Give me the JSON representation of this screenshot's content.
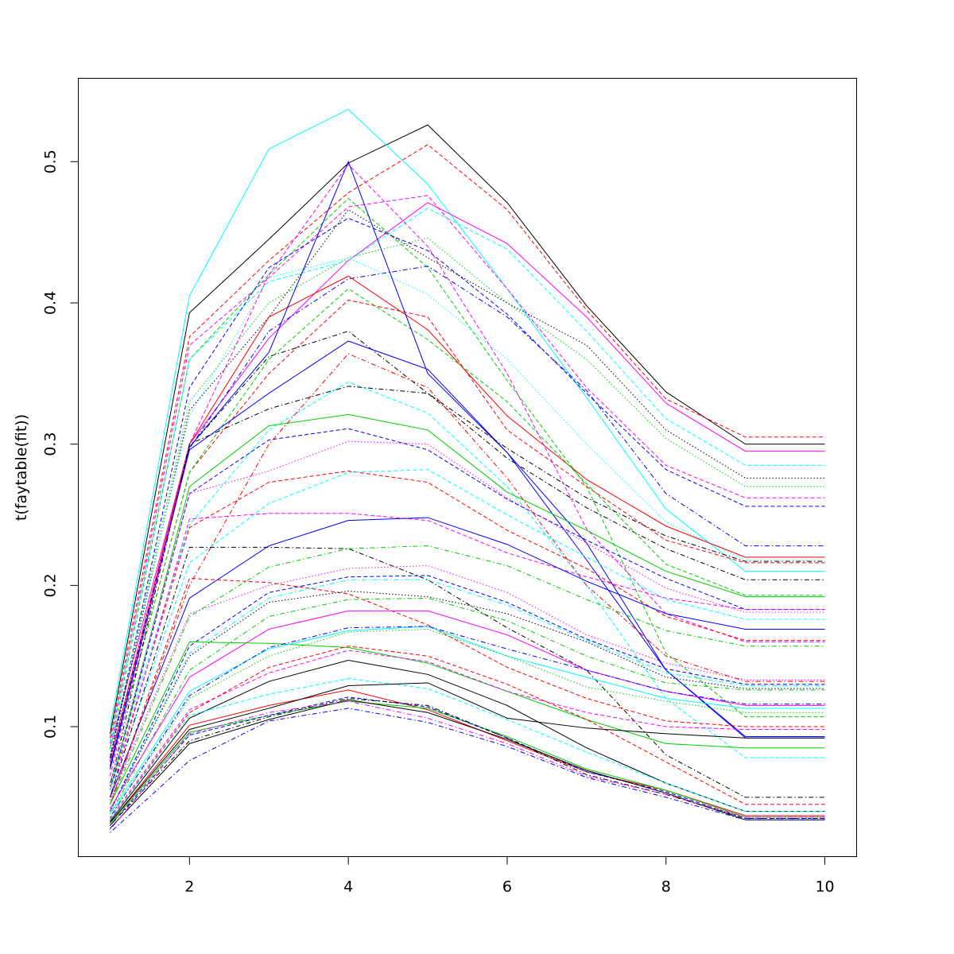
{
  "chart_data": {
    "type": "line",
    "title": "",
    "xlabel": "",
    "ylabel": "t(faytable(fit))",
    "xlim": [
      0.6,
      10.4
    ],
    "ylim": [
      0.008,
      0.559
    ],
    "xticks": [
      2,
      4,
      6,
      8,
      10
    ],
    "yticks": [
      0.1,
      0.2,
      0.3,
      0.4,
      0.5
    ],
    "grid": false,
    "legend": "none",
    "x": [
      1,
      2,
      3,
      4,
      5,
      6,
      7,
      8,
      9,
      10
    ],
    "series": [
      {
        "color": "#000000",
        "dash": "solid",
        "values": [
          0.095,
          0.393,
          0.445,
          0.499,
          0.526,
          0.471,
          0.398,
          0.337,
          0.3,
          0.3
        ]
      },
      {
        "color": "#FF0000",
        "dash": "dashed",
        "values": [
          0.092,
          0.376,
          0.43,
          0.478,
          0.512,
          0.466,
          0.395,
          0.332,
          0.305,
          0.305
        ]
      },
      {
        "color": "#00FFFF",
        "dash": "solid",
        "values": [
          0.1,
          0.405,
          0.509,
          0.537,
          0.484,
          0.41,
          0.333,
          0.254,
          0.21,
          0.21
        ]
      },
      {
        "color": "#FF00FF",
        "dash": "solid",
        "values": [
          0.085,
          0.3,
          0.375,
          0.43,
          0.471,
          0.442,
          0.39,
          0.329,
          0.295,
          0.295
        ]
      },
      {
        "color": "#FF00FF",
        "dash": "dashed",
        "values": [
          0.088,
          0.37,
          0.418,
          0.468,
          0.476,
          0.41,
          0.34,
          0.285,
          0.262,
          0.262
        ]
      },
      {
        "color": "#00CD00",
        "dash": "dashed",
        "values": [
          0.084,
          0.36,
          0.42,
          0.474,
          0.425,
          0.345,
          0.27,
          0.152,
          0.107,
          0.107
        ]
      },
      {
        "color": "#00CD00",
        "dash": "dotted",
        "values": [
          0.08,
          0.33,
          0.4,
          0.432,
          0.446,
          0.4,
          0.36,
          0.304,
          0.27,
          0.27
        ]
      },
      {
        "color": "#0000FF",
        "dash": "dashed",
        "values": [
          0.078,
          0.34,
          0.425,
          0.46,
          0.437,
          0.392,
          0.336,
          0.282,
          0.256,
          0.256
        ]
      },
      {
        "color": "#0000FF",
        "dash": "dotdash",
        "values": [
          0.075,
          0.297,
          0.38,
          0.417,
          0.426,
          0.39,
          0.338,
          0.265,
          0.228,
          0.228
        ]
      },
      {
        "color": "#000000",
        "dash": "dotted",
        "values": [
          0.078,
          0.324,
          0.39,
          0.466,
          0.432,
          0.4,
          0.37,
          0.31,
          0.276,
          0.276
        ]
      },
      {
        "color": "#000000",
        "dash": "dotdash",
        "values": [
          0.07,
          0.298,
          0.362,
          0.38,
          0.336,
          0.29,
          0.255,
          0.226,
          0.204,
          0.204
        ]
      },
      {
        "color": "#00FFFF",
        "dash": "dashed",
        "values": [
          0.09,
          0.36,
          0.415,
          0.43,
          0.467,
          0.438,
          0.38,
          0.318,
          0.285,
          0.285
        ]
      },
      {
        "color": "#00FFFF",
        "dash": "dotted",
        "values": [
          0.085,
          0.32,
          0.418,
          0.432,
          0.406,
          0.36,
          0.3,
          0.245,
          0.218,
          0.218
        ]
      },
      {
        "color": "#FF0000",
        "dash": "solid",
        "values": [
          0.076,
          0.3,
          0.39,
          0.419,
          0.381,
          0.32,
          0.275,
          0.242,
          0.22,
          0.22
        ]
      },
      {
        "color": "#FF0000",
        "dash": "dashed",
        "values": [
          0.07,
          0.28,
          0.35,
          0.402,
          0.39,
          0.31,
          0.27,
          0.232,
          0.216,
          0.216
        ]
      },
      {
        "color": "#00CD00",
        "dash": "dashed",
        "values": [
          0.07,
          0.28,
          0.36,
          0.41,
          0.374,
          0.33,
          0.272,
          0.215,
          0.193,
          0.193
        ]
      },
      {
        "color": "#0000FF",
        "dash": "solid",
        "values": [
          0.072,
          0.296,
          0.336,
          0.373,
          0.353,
          0.294,
          0.218,
          0.14,
          0.093,
          0.093
        ]
      },
      {
        "color": "#0000FF",
        "dash": "solid",
        "values": [
          0.07,
          0.298,
          0.365,
          0.5,
          0.35,
          0.294,
          0.23,
          0.14,
          0.092,
          0.092
        ]
      },
      {
        "color": "#FF00FF",
        "dash": "dashed",
        "values": [
          0.065,
          0.3,
          0.42,
          0.498,
          0.44,
          0.35,
          0.24,
          0.18,
          0.16,
          0.16
        ]
      },
      {
        "color": "#00CD00",
        "dash": "solid",
        "values": [
          0.055,
          0.27,
          0.313,
          0.321,
          0.31,
          0.266,
          0.239,
          0.21,
          0.192,
          0.192
        ]
      },
      {
        "color": "#00FFFF",
        "dash": "dashed",
        "values": [
          0.06,
          0.243,
          0.31,
          0.344,
          0.322,
          0.27,
          0.2,
          0.12,
          0.078,
          0.078
        ]
      },
      {
        "color": "#000000",
        "dash": "dotdash",
        "values": [
          0.058,
          0.3,
          0.325,
          0.341,
          0.336,
          0.297,
          0.262,
          0.235,
          0.217,
          0.217
        ]
      },
      {
        "color": "#0000FF",
        "dash": "dashed",
        "values": [
          0.055,
          0.265,
          0.303,
          0.311,
          0.296,
          0.261,
          0.232,
          0.205,
          0.183,
          0.183
        ]
      },
      {
        "color": "#FF00FF",
        "dash": "dotted",
        "values": [
          0.06,
          0.265,
          0.281,
          0.302,
          0.3,
          0.262,
          0.23,
          0.198,
          0.181,
          0.181
        ]
      },
      {
        "color": "#FF0000",
        "dash": "dashed",
        "values": [
          0.055,
          0.241,
          0.273,
          0.281,
          0.273,
          0.239,
          0.212,
          0.178,
          0.161,
          0.161
        ]
      },
      {
        "color": "#00FFFF",
        "dash": "dashed",
        "values": [
          0.055,
          0.216,
          0.258,
          0.28,
          0.282,
          0.25,
          0.22,
          0.19,
          0.176,
          0.176
        ]
      },
      {
        "color": "#FF0000",
        "dash": "dotdash",
        "values": [
          0.045,
          0.2,
          0.3,
          0.364,
          0.34,
          0.276,
          0.2,
          0.15,
          0.132,
          0.132
        ]
      },
      {
        "color": "#FF00FF",
        "dash": "dashed",
        "values": [
          0.05,
          0.247,
          0.251,
          0.251,
          0.246,
          0.223,
          0.206,
          0.191,
          0.183,
          0.183
        ]
      },
      {
        "color": "#0000FF",
        "dash": "solid",
        "values": [
          0.05,
          0.191,
          0.228,
          0.246,
          0.248,
          0.229,
          0.203,
          0.18,
          0.169,
          0.169
        ]
      },
      {
        "color": "#000000",
        "dash": "dotdash",
        "values": [
          0.05,
          0.227,
          0.227,
          0.226,
          0.204,
          0.17,
          0.14,
          0.08,
          0.05,
          0.05
        ]
      },
      {
        "color": "#00CD00",
        "dash": "dotdash",
        "values": [
          0.045,
          0.178,
          0.213,
          0.226,
          0.228,
          0.214,
          0.19,
          0.168,
          0.157,
          0.157
        ]
      },
      {
        "color": "#FF0000",
        "dash": "dashed",
        "values": [
          0.045,
          0.205,
          0.202,
          0.194,
          0.172,
          0.142,
          0.12,
          0.104,
          0.1,
          0.1
        ]
      },
      {
        "color": "#FF00FF",
        "dash": "dotted",
        "values": [
          0.048,
          0.18,
          0.2,
          0.212,
          0.214,
          0.195,
          0.165,
          0.145,
          0.133,
          0.133
        ]
      },
      {
        "color": "#0000FF",
        "dash": "dashed",
        "values": [
          0.04,
          0.157,
          0.195,
          0.206,
          0.207,
          0.188,
          0.162,
          0.141,
          0.13,
          0.13
        ]
      },
      {
        "color": "#00FFFF",
        "dash": "dotdash",
        "values": [
          0.04,
          0.152,
          0.191,
          0.204,
          0.204,
          0.186,
          0.161,
          0.138,
          0.129,
          0.129
        ]
      },
      {
        "color": "#000000",
        "dash": "dotted",
        "values": [
          0.04,
          0.15,
          0.188,
          0.196,
          0.192,
          0.18,
          0.16,
          0.135,
          0.127,
          0.127
        ]
      },
      {
        "color": "#00CD00",
        "dash": "dotdash",
        "values": [
          0.038,
          0.14,
          0.178,
          0.19,
          0.191,
          0.175,
          0.15,
          0.131,
          0.126,
          0.126
        ]
      },
      {
        "color": "#FF00FF",
        "dash": "solid",
        "values": [
          0.042,
          0.135,
          0.169,
          0.182,
          0.182,
          0.165,
          0.14,
          0.125,
          0.115,
          0.115
        ]
      },
      {
        "color": "#00CD00",
        "dash": "solid",
        "values": [
          0.045,
          0.16,
          0.159,
          0.156,
          0.145,
          0.125,
          0.105,
          0.088,
          0.085,
          0.085
        ]
      },
      {
        "color": "#00FFFF",
        "dash": "solid",
        "values": [
          0.038,
          0.125,
          0.155,
          0.168,
          0.171,
          0.15,
          0.135,
          0.12,
          0.113,
          0.113
        ]
      },
      {
        "color": "#0000FF",
        "dash": "dotdash",
        "values": [
          0.036,
          0.122,
          0.156,
          0.17,
          0.171,
          0.155,
          0.14,
          0.125,
          0.116,
          0.116
        ]
      },
      {
        "color": "#00CD00",
        "dash": "dotted",
        "values": [
          0.036,
          0.12,
          0.15,
          0.167,
          0.169,
          0.15,
          0.128,
          0.118,
          0.11,
          0.11
        ]
      },
      {
        "color": "#FF00FF",
        "dash": "dashed",
        "values": [
          0.035,
          0.112,
          0.138,
          0.154,
          0.146,
          0.125,
          0.11,
          0.1,
          0.098,
          0.098
        ]
      },
      {
        "color": "#FF0000",
        "dash": "dashed",
        "values": [
          0.034,
          0.11,
          0.142,
          0.157,
          0.15,
          0.13,
          0.105,
          0.075,
          0.045,
          0.045
        ]
      },
      {
        "color": "#000000",
        "dash": "solid",
        "values": [
          0.033,
          0.106,
          0.132,
          0.147,
          0.137,
          0.115,
          0.085,
          0.06,
          0.04,
          0.04
        ]
      },
      {
        "color": "#00FFFF",
        "dash": "dashed",
        "values": [
          0.034,
          0.108,
          0.123,
          0.134,
          0.127,
          0.105,
          0.082,
          0.06,
          0.04,
          0.04
        ]
      },
      {
        "color": "#FF0000",
        "dash": "solid",
        "values": [
          0.032,
          0.101,
          0.115,
          0.126,
          0.112,
          0.09,
          0.068,
          0.055,
          0.037,
          0.037
        ]
      },
      {
        "color": "#000000",
        "dash": "solid",
        "values": [
          0.032,
          0.098,
          0.113,
          0.129,
          0.131,
          0.106,
          0.099,
          0.095,
          0.092,
          0.092
        ]
      },
      {
        "color": "#00CD00",
        "dash": "solid",
        "values": [
          0.031,
          0.096,
          0.108,
          0.118,
          0.113,
          0.093,
          0.07,
          0.055,
          0.036,
          0.036
        ]
      },
      {
        "color": "#0000FF",
        "dash": "dashed",
        "values": [
          0.03,
          0.094,
          0.108,
          0.121,
          0.114,
          0.092,
          0.068,
          0.054,
          0.035,
          0.035
        ]
      },
      {
        "color": "#000000",
        "dash": "dotdash",
        "values": [
          0.03,
          0.09,
          0.107,
          0.12,
          0.115,
          0.092,
          0.066,
          0.052,
          0.035,
          0.035
        ]
      },
      {
        "color": "#000000",
        "dash": "solid",
        "values": [
          0.028,
          0.088,
          0.105,
          0.119,
          0.11,
          0.091,
          0.069,
          0.053,
          0.034,
          0.034
        ]
      },
      {
        "color": "#FF00FF",
        "dash": "dotdash",
        "values": [
          0.027,
          0.095,
          0.11,
          0.118,
          0.106,
          0.088,
          0.065,
          0.052,
          0.036,
          0.036
        ]
      },
      {
        "color": "#0000FF",
        "dash": "dotdash",
        "values": [
          0.025,
          0.076,
          0.104,
          0.113,
          0.103,
          0.086,
          0.064,
          0.05,
          0.034,
          0.034
        ]
      }
    ]
  }
}
